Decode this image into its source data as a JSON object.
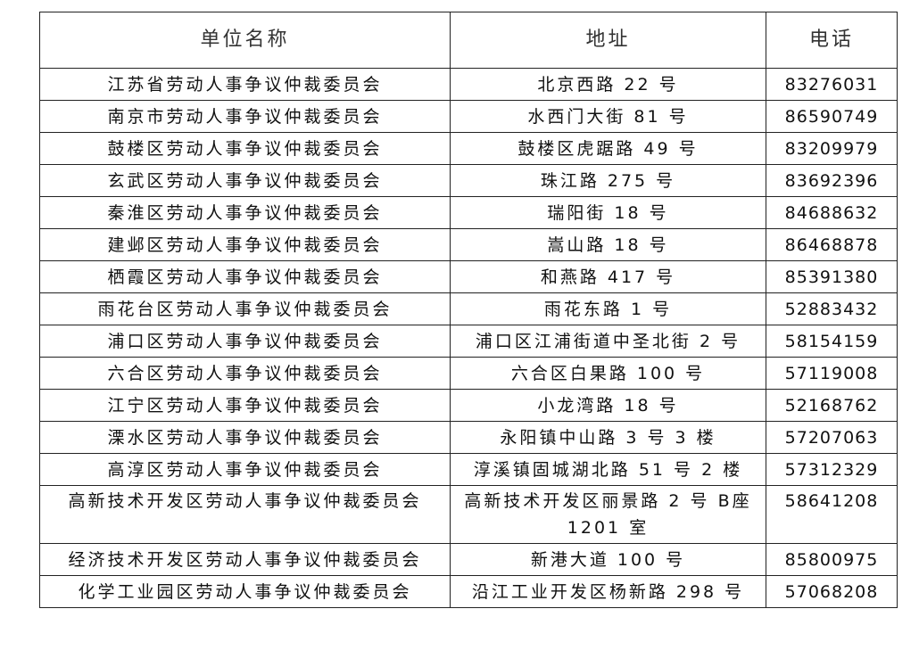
{
  "table": {
    "headers": [
      "单位名称",
      "地址",
      "电话"
    ],
    "rows": [
      {
        "name": "江苏省劳动人事争议仲裁委员会",
        "address": "北京西路 22 号",
        "phone": "83276031"
      },
      {
        "name": "南京市劳动人事争议仲裁委员会",
        "address": "水西门大街 81 号",
        "phone": "86590749"
      },
      {
        "name": "鼓楼区劳动人事争议仲裁委员会",
        "address": "鼓楼区虎踞路 49 号",
        "phone": "83209979"
      },
      {
        "name": "玄武区劳动人事争议仲裁委员会",
        "address": "珠江路 275 号",
        "phone": "83692396"
      },
      {
        "name": "秦淮区劳动人事争议仲裁委员会",
        "address": "瑞阳街 18 号",
        "phone": "84688632"
      },
      {
        "name": "建邺区劳动人事争议仲裁委员会",
        "address": "嵩山路 18 号",
        "phone": "86468878"
      },
      {
        "name": "栖霞区劳动人事争议仲裁委员会",
        "address": "和燕路 417 号",
        "phone": "85391380"
      },
      {
        "name": "雨花台区劳动人事争议仲裁委员会",
        "address": "雨花东路 1 号",
        "phone": "52883432"
      },
      {
        "name": "浦口区劳动人事争议仲裁委员会",
        "address": "浦口区江浦街道中圣北街 2 号",
        "phone": "58154159"
      },
      {
        "name": "六合区劳动人事争议仲裁委员会",
        "address": "六合区白果路 100 号",
        "phone": "57119008"
      },
      {
        "name": "江宁区劳动人事争议仲裁委员会",
        "address": "小龙湾路 18 号",
        "phone": "52168762"
      },
      {
        "name": "溧水区劳动人事争议仲裁委员会",
        "address": "永阳镇中山路 3 号 3 楼",
        "phone": "57207063"
      },
      {
        "name": "高淳区劳动人事争议仲裁委员会",
        "address": "淳溪镇固城湖北路 51 号 2 楼",
        "phone": "57312329"
      },
      {
        "name": "高新技术开发区劳动人事争议仲裁委员会",
        "address": "高新技术开发区丽景路 2 号 B座 1201 室",
        "phone": "58641208"
      },
      {
        "name": "经济技术开发区劳动人事争议仲裁委员会",
        "address": "新港大道 100 号",
        "phone": "85800975"
      },
      {
        "name": "化学工业园区劳动人事争议仲裁委员会",
        "address": "沿江工业开发区杨新路 298 号",
        "phone": "57068208"
      }
    ]
  }
}
